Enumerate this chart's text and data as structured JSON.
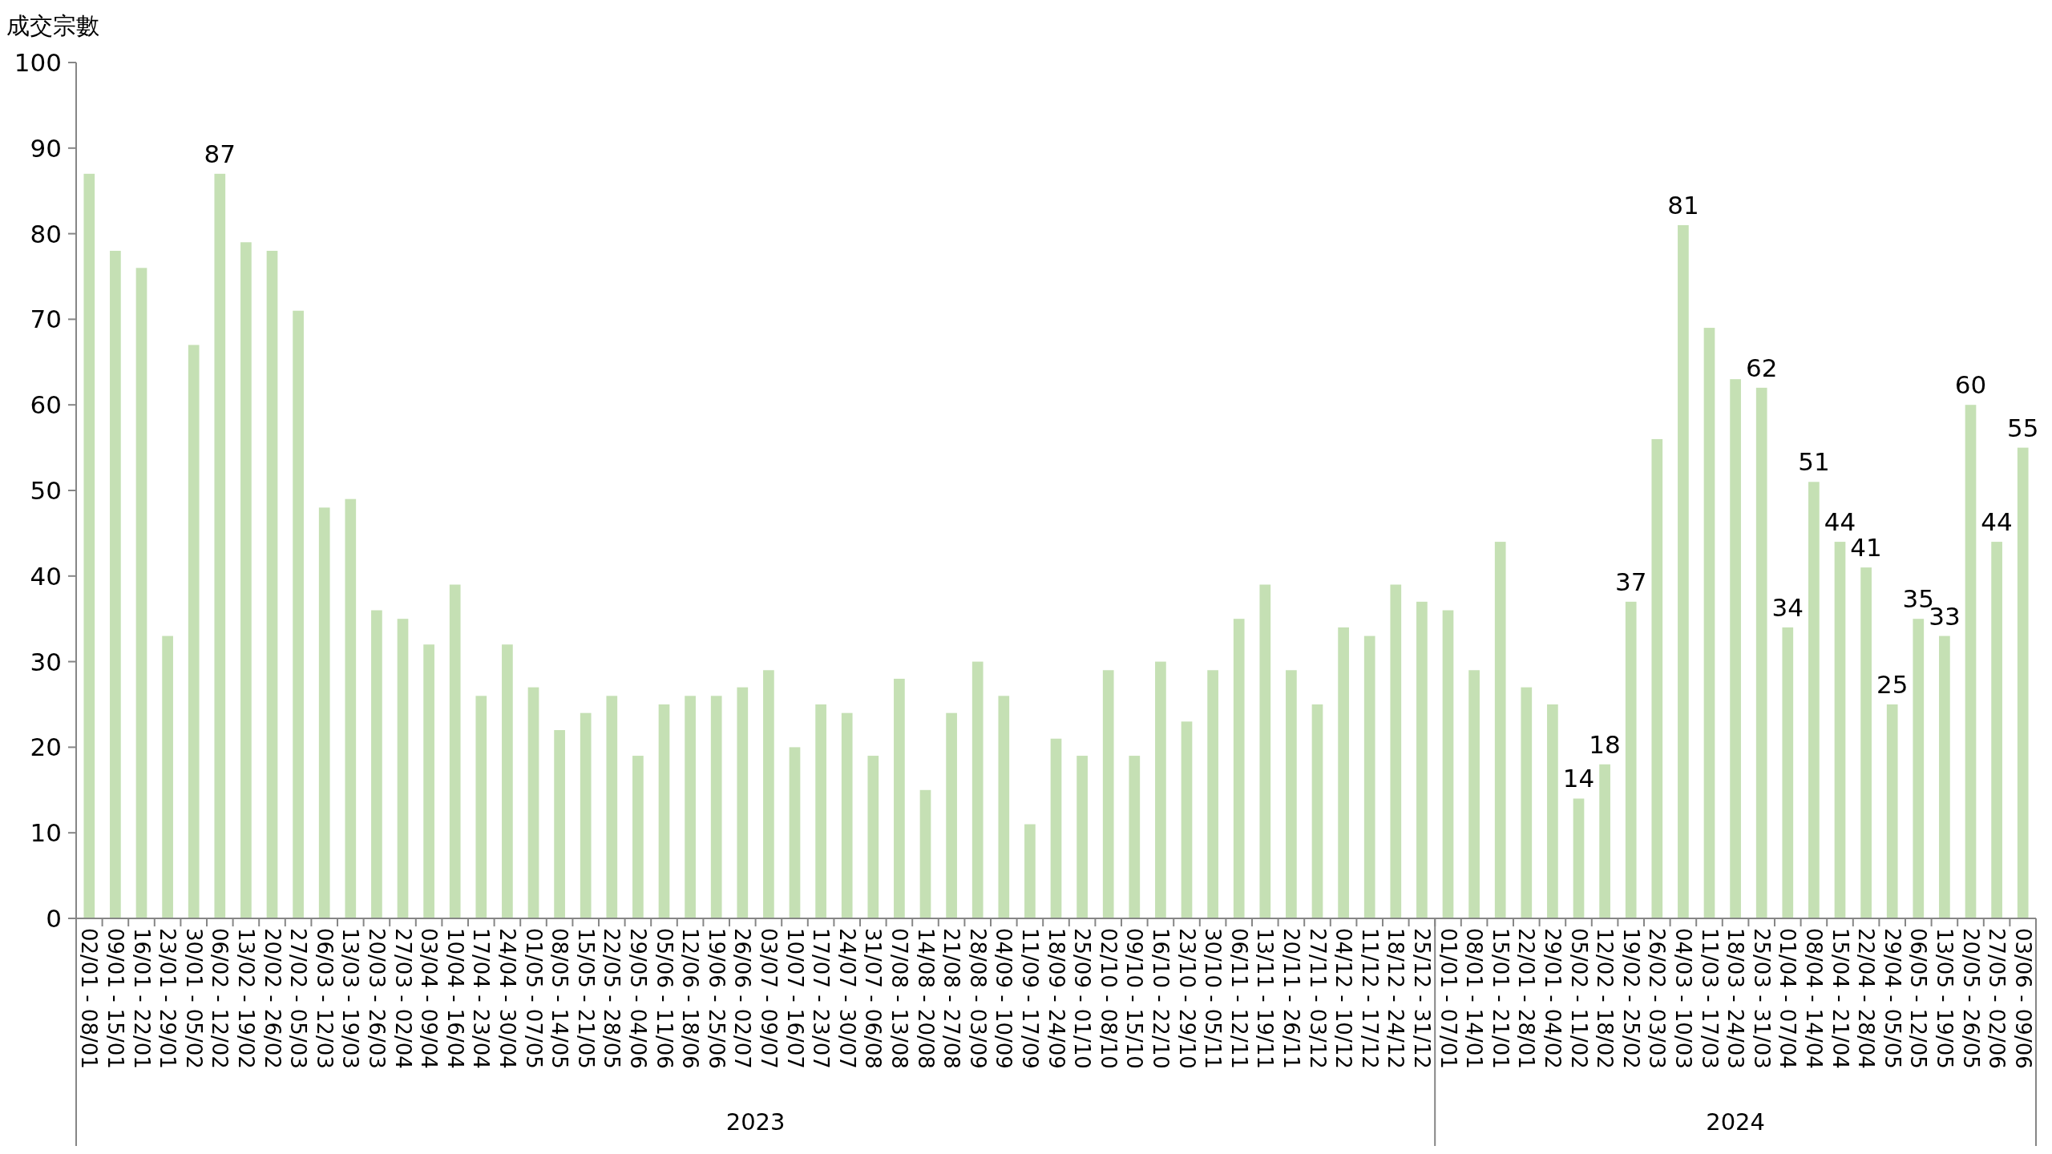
{
  "chart_data": {
    "type": "bar",
    "ylabel": "成交宗數",
    "color": "#c5e0b4",
    "ylim": [
      0,
      100
    ],
    "yticks": [
      0,
      10,
      20,
      30,
      40,
      50,
      60,
      70,
      80,
      90,
      100
    ],
    "grid": false,
    "categories": [
      "02/01 - 08/01",
      "09/01 - 15/01",
      "16/01 - 22/01",
      "23/01 - 29/01",
      "30/01 - 05/02",
      "06/02 - 12/02",
      "13/02 - 19/02",
      "20/02 - 26/02",
      "27/02 - 05/03",
      "06/03 - 12/03",
      "13/03 - 19/03",
      "20/03 - 26/03",
      "27/03 - 02/04",
      "03/04 - 09/04",
      "10/04 - 16/04",
      "17/04 - 23/04",
      "24/04 - 30/04",
      "01/05 - 07/05",
      "08/05 - 14/05",
      "15/05 - 21/05",
      "22/05 - 28/05",
      "29/05 - 04/06",
      "05/06 - 11/06",
      "12/06 - 18/06",
      "19/06 - 25/06",
      "26/06 - 02/07",
      "03/07 - 09/07",
      "10/07 - 16/07",
      "17/07 - 23/07",
      "24/07 - 30/07",
      "31/07 - 06/08",
      "07/08 - 13/08",
      "14/08 - 20/08",
      "21/08 - 27/08",
      "28/08 - 03/09",
      "04/09 - 10/09",
      "11/09 - 17/09",
      "18/09 - 24/09",
      "25/09 - 01/10",
      "02/10 - 08/10",
      "09/10 - 15/10",
      "16/10 - 22/10",
      "23/10 - 29/10",
      "30/10 - 05/11",
      "06/11 - 12/11",
      "13/11 - 19/11",
      "20/11 - 26/11",
      "27/11 - 03/12",
      "04/12 - 10/12",
      "11/12 - 17/12",
      "18/12 - 24/12",
      "25/12 - 31/12",
      "01/01 - 07/01",
      "08/01 - 14/01",
      "15/01 - 21/01",
      "22/01 - 28/01",
      "29/01 - 04/02",
      "05/02 - 11/02",
      "12/02 - 18/02",
      "19/02 - 25/02",
      "26/02 - 03/03",
      "04/03 - 10/03",
      "11/03 - 17/03",
      "18/03 - 24/03",
      "25/03 - 31/03",
      "01/04 - 07/04",
      "08/04 - 14/04",
      "15/04 - 21/04",
      "22/04 - 28/04",
      "29/04 - 05/05",
      "06/05 - 12/05",
      "13/05 - 19/05",
      "20/05 - 26/05",
      "27/05 - 02/06",
      "03/06 - 09/06"
    ],
    "values": [
      87,
      78,
      76,
      33,
      67,
      87,
      79,
      78,
      71,
      48,
      49,
      36,
      35,
      32,
      39,
      26,
      32,
      27,
      22,
      24,
      26,
      19,
      25,
      26,
      26,
      27,
      29,
      20,
      25,
      24,
      19,
      28,
      15,
      24,
      30,
      26,
      11,
      21,
      19,
      29,
      19,
      30,
      23,
      29,
      35,
      39,
      29,
      25,
      34,
      33,
      39,
      37,
      36,
      29,
      44,
      27,
      25,
      14,
      18,
      37,
      56,
      81,
      69,
      63,
      62,
      34,
      51,
      44,
      41,
      25,
      35,
      33,
      60,
      44,
      55
    ],
    "value_labels": [
      null,
      null,
      null,
      null,
      null,
      "87",
      null,
      null,
      null,
      null,
      null,
      null,
      null,
      null,
      null,
      null,
      null,
      null,
      null,
      null,
      null,
      null,
      null,
      null,
      null,
      null,
      null,
      null,
      null,
      null,
      null,
      null,
      null,
      null,
      null,
      null,
      null,
      null,
      null,
      null,
      null,
      null,
      null,
      null,
      null,
      null,
      null,
      null,
      null,
      null,
      null,
      null,
      null,
      null,
      null,
      null,
      null,
      "14",
      "18",
      "37",
      null,
      "81",
      null,
      null,
      "62",
      "34",
      "51",
      "44",
      "41",
      "25",
      "35",
      "33",
      "60",
      "44",
      "55"
    ],
    "annotations": [
      "2023",
      "2024"
    ]
  }
}
